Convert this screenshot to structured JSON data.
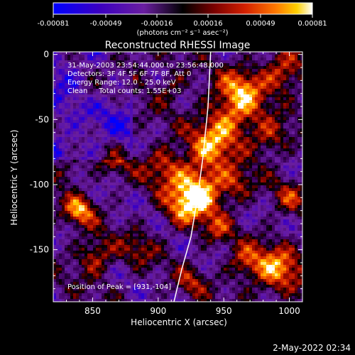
{
  "colorbar": {
    "ticks": [
      "-0.00081",
      "-0.00049",
      "-0.00016",
      "0.00016",
      "0.00049",
      "0.00081"
    ],
    "unit_label": "(photons cm⁻² s⁻¹ asec⁻²)",
    "colors": [
      "#0000ff",
      "#3c00c0",
      "#6a1ea0",
      "#000000",
      "#7a0000",
      "#d42000",
      "#ff7a00",
      "#ffd000",
      "#ffffff"
    ]
  },
  "chart_data": {
    "type": "heatmap",
    "title": "Reconstructed RHESSI Image",
    "xlabel": "Heliocentric X (arcsec)",
    "ylabel": "Heliocentric Y (arcsec)",
    "xlim": [
      820,
      1010
    ],
    "ylim": [
      -190,
      2
    ],
    "x_ticks": [
      850,
      900,
      950,
      1000
    ],
    "y_ticks": [
      0,
      -50,
      -100,
      -150
    ],
    "annotations": [
      "31-May-2003 23:54:44.000 to 23:56:48.000",
      "Detectors: 3F 4F 5F 6F 7F 8F, Att 0",
      "Energy Range: 12.0 - 25.0 keV",
      "Clean     Total counts: 1.55E+03"
    ],
    "peak_label": "Position of Peak = [931,-104]",
    "peak": [
      931,
      -104
    ],
    "limb_curve": [
      [
        940,
        2
      ],
      [
        938,
        -40
      ],
      [
        934,
        -80
      ],
      [
        930,
        -110
      ],
      [
        925,
        -140
      ],
      [
        918,
        -165
      ],
      [
        912,
        -190
      ]
    ]
  },
  "footer": {
    "timestamp": "2-May-2022 02:34"
  }
}
